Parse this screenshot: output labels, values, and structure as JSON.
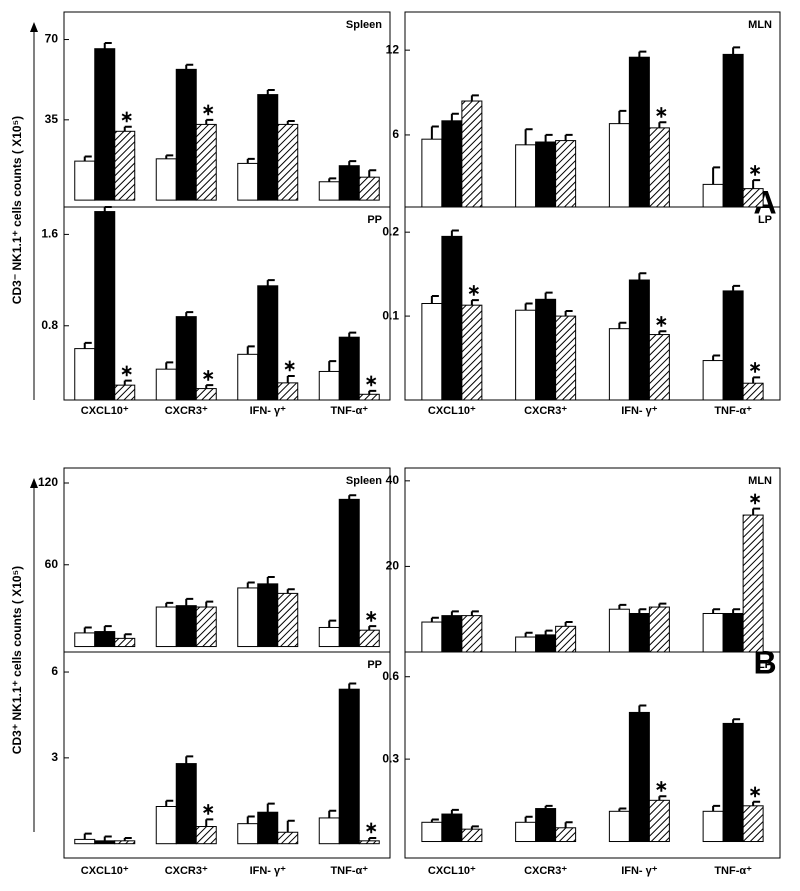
{
  "figure": {
    "panel_labels": [
      "A",
      "B"
    ],
    "y_labels": [
      "CD3⁻ NK1.1⁺ cells counts ( X10⁵)",
      "CD3⁺ NK1.1⁺ cells counts ( X10⁵)"
    ]
  },
  "chart_data": [
    {
      "type": "bar",
      "title": "Spleen",
      "ylim": [
        -3,
        82
      ],
      "yticks": [
        35,
        70
      ],
      "series": [
        {
          "color": "#ffffff",
          "values": [
            17,
            18,
            16,
            8
          ],
          "errors": [
            2,
            1.5,
            2,
            1.5
          ]
        },
        {
          "color": "#000000",
          "values": [
            66,
            57,
            46,
            15
          ],
          "errors": [
            2.5,
            2,
            2,
            2
          ]
        },
        {
          "color": "#000000",
          "hatch": true,
          "values": [
            30,
            33,
            33,
            10
          ],
          "errors": [
            2,
            2,
            1.5,
            3
          ]
        }
      ],
      "annotations": [
        {
          "text": "∗",
          "series": 2,
          "index": 0
        },
        {
          "text": "∗",
          "series": 2,
          "index": 1
        }
      ]
    },
    {
      "type": "bar",
      "title": "MLN",
      "ylim": [
        0.9,
        14.7
      ],
      "yticks": [
        6,
        12
      ],
      "series": [
        {
          "color": "#ffffff",
          "values": [
            5.7,
            5.3,
            6.8,
            2.5
          ],
          "errors": [
            0.9,
            1.1,
            0.9,
            1.2
          ]
        },
        {
          "color": "#000000",
          "values": [
            7,
            5.5,
            11.5,
            11.7
          ],
          "errors": [
            0.5,
            0.5,
            0.4,
            0.5
          ]
        },
        {
          "color": "#000000",
          "hatch": true,
          "values": [
            8.4,
            5.6,
            6.5,
            2.2
          ],
          "errors": [
            0.4,
            0.4,
            0.4,
            0.6
          ]
        }
      ],
      "annotations": [
        {
          "text": "∗",
          "series": 2,
          "index": 2
        },
        {
          "text": "∗",
          "series": 2,
          "index": 3
        }
      ]
    },
    {
      "type": "bar",
      "title": "PP",
      "ylim": [
        0.15,
        1.84
      ],
      "yticks": [
        0.8,
        1.6
      ],
      "series": [
        {
          "color": "#ffffff",
          "values": [
            0.6,
            0.42,
            0.55,
            0.4
          ],
          "errors": [
            0.05,
            0.06,
            0.07,
            0.09
          ]
        },
        {
          "color": "#000000",
          "values": [
            1.8,
            0.88,
            1.15,
            0.7
          ],
          "errors": [
            0.04,
            0.04,
            0.05,
            0.04
          ]
        },
        {
          "color": "#000000",
          "hatch": true,
          "values": [
            0.28,
            0.25,
            0.3,
            0.2
          ],
          "errors": [
            0.04,
            0.03,
            0.06,
            0.03
          ]
        }
      ],
      "annotations": [
        {
          "text": "∗",
          "series": 2,
          "index": 0
        },
        {
          "text": "∗",
          "series": 2,
          "index": 1
        },
        {
          "text": "∗",
          "series": 2,
          "index": 2
        },
        {
          "text": "∗",
          "series": 2,
          "index": 3
        }
      ]
    },
    {
      "type": "bar",
      "title": "LP",
      "ylim": [
        0,
        0.23
      ],
      "yticks": [
        0.1,
        0.2
      ],
      "series": [
        {
          "color": "#ffffff",
          "values": [
            0.115,
            0.107,
            0.085,
            0.047
          ],
          "errors": [
            0.009,
            0.008,
            0.007,
            0.006
          ]
        },
        {
          "color": "#000000",
          "values": [
            0.195,
            0.12,
            0.143,
            0.13
          ],
          "errors": [
            0.007,
            0.008,
            0.008,
            0.006
          ]
        },
        {
          "color": "#000000",
          "hatch": true,
          "values": [
            0.113,
            0.1,
            0.078,
            0.02
          ],
          "errors": [
            0.006,
            0.006,
            0.004,
            0.007
          ]
        }
      ],
      "annotations": [
        {
          "text": "∗",
          "series": 2,
          "index": 0
        },
        {
          "text": "∗",
          "series": 2,
          "index": 2
        },
        {
          "text": "∗",
          "series": 2,
          "index": 3
        }
      ]
    },
    {
      "type": "bar",
      "title": "Spleen",
      "ylim": [
        -4,
        131
      ],
      "yticks": [
        60,
        120
      ],
      "series": [
        {
          "color": "#ffffff",
          "values": [
            10,
            29,
            43,
            14
          ],
          "errors": [
            4,
            3,
            4,
            5
          ]
        },
        {
          "color": "#000000",
          "values": [
            11,
            30,
            46,
            108
          ],
          "errors": [
            4,
            5,
            5,
            3
          ]
        },
        {
          "color": "#000000",
          "hatch": true,
          "values": [
            6,
            29,
            39,
            12
          ],
          "errors": [
            3,
            4,
            3,
            3
          ]
        }
      ],
      "annotations": [
        {
          "text": "∗",
          "series": 2,
          "index": 3
        }
      ]
    },
    {
      "type": "bar",
      "title": "MLN",
      "ylim": [
        0,
        43
      ],
      "yticks": [
        20,
        40
      ],
      "series": [
        {
          "color": "#ffffff",
          "values": [
            7,
            3.5,
            10,
            9
          ],
          "errors": [
            1,
            1,
            1,
            1
          ]
        },
        {
          "color": "#000000",
          "values": [
            8.5,
            4,
            9,
            9
          ],
          "errors": [
            1,
            1,
            1,
            1
          ]
        },
        {
          "color": "#000000",
          "hatch": true,
          "values": [
            8.5,
            6,
            10.5,
            32
          ],
          "errors": [
            1,
            1,
            0.8,
            1.5
          ]
        }
      ],
      "annotations": [
        {
          "text": "∗",
          "series": 2,
          "index": 3
        }
      ]
    },
    {
      "type": "bar",
      "title": "PP",
      "ylim": [
        -0.5,
        6.7
      ],
      "yticks": [
        3,
        6
      ],
      "series": [
        {
          "color": "#ffffff",
          "values": [
            0.15,
            1.3,
            0.7,
            0.9
          ],
          "errors": [
            0.2,
            0.2,
            0.25,
            0.25
          ]
        },
        {
          "color": "#000000",
          "values": [
            0.1,
            2.8,
            1.1,
            5.4
          ],
          "errors": [
            0.15,
            0.25,
            0.3,
            0.2
          ]
        },
        {
          "color": "#000000",
          "hatch": true,
          "values": [
            0.1,
            0.6,
            0.4,
            0.1
          ],
          "errors": [
            0.1,
            0.25,
            0.4,
            0.1
          ]
        }
      ],
      "annotations": [
        {
          "text": "∗",
          "series": 2,
          "index": 1
        },
        {
          "text": "∗",
          "series": 2,
          "index": 3
        }
      ]
    },
    {
      "type": "bar",
      "title": "LP",
      "ylim": [
        -0.06,
        0.69
      ],
      "yticks": [
        0.3,
        0.6
      ],
      "categories": [
        "CXCL10⁺",
        "CXCR3⁺",
        "IFN- γ⁺",
        "TNF-α⁺"
      ],
      "series": [
        {
          "color": "#ffffff",
          "values": [
            0.07,
            0.07,
            0.11,
            0.11
          ],
          "errors": [
            0.01,
            0.02,
            0.01,
            0.02
          ]
        },
        {
          "color": "#000000",
          "values": [
            0.1,
            0.12,
            0.47,
            0.43
          ],
          "errors": [
            0.015,
            0.01,
            0.025,
            0.015
          ]
        },
        {
          "color": "#000000",
          "hatch": true,
          "values": [
            0.045,
            0.05,
            0.15,
            0.13
          ],
          "errors": [
            0.01,
            0.02,
            0.015,
            0.015
          ]
        }
      ],
      "annotations": [
        {
          "text": "∗",
          "series": 2,
          "index": 2
        },
        {
          "text": "∗",
          "series": 2,
          "index": 3
        }
      ]
    }
  ]
}
